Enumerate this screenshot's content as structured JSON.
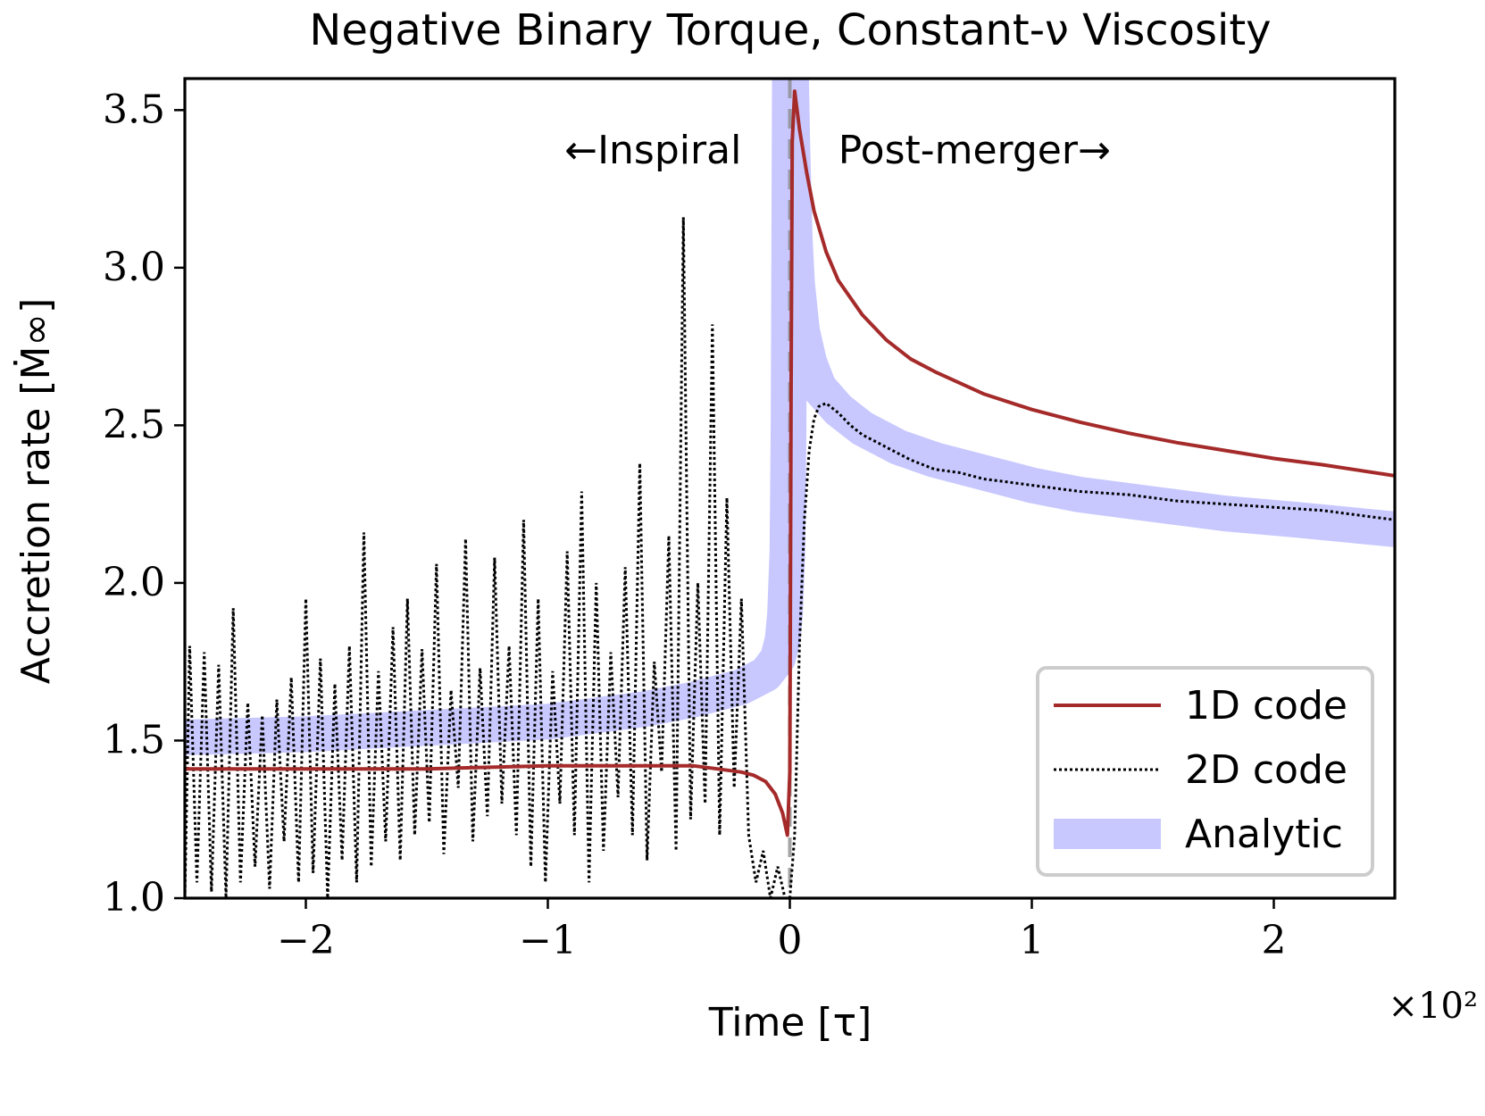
{
  "chart_data": {
    "type": "line",
    "title": "Negative Binary Torque, Constant-ν Viscosity",
    "xlabel": "Time [τ]",
    "ylabel": "Accretion rate [Ṁ∞]",
    "x_multiplier": "×10²",
    "xlim": [
      -2.5,
      2.5
    ],
    "ylim": [
      1.0,
      3.6
    ],
    "xticks": [
      {
        "value": -2,
        "label": "−2"
      },
      {
        "value": -1,
        "label": "−1"
      },
      {
        "value": 0,
        "label": "0"
      },
      {
        "value": 1,
        "label": "1"
      },
      {
        "value": 2,
        "label": "2"
      }
    ],
    "yticks": [
      {
        "value": 1.0,
        "label": "1.0"
      },
      {
        "value": 1.5,
        "label": "1.5"
      },
      {
        "value": 2.0,
        "label": "2.0"
      },
      {
        "value": 2.5,
        "label": "2.5"
      },
      {
        "value": 3.0,
        "label": "3.0"
      },
      {
        "value": 3.5,
        "label": "3.5"
      }
    ],
    "grid": false,
    "legend_position": "bottom-right",
    "annotations": [
      {
        "text": "←Inspiral",
        "x": -0.2,
        "y": 3.37,
        "anchor": "end"
      },
      {
        "text": "Post-merger→",
        "x": 0.2,
        "y": 3.37,
        "anchor": "start"
      }
    ],
    "vline": {
      "x": 0.0,
      "style": "dashed",
      "color": "#888888"
    },
    "series": [
      {
        "name": "1D code",
        "color": "#a52a2a",
        "style": "solid",
        "x": [
          -2.5,
          -2.0,
          -1.5,
          -1.0,
          -0.6,
          -0.4,
          -0.3,
          -0.2,
          -0.15,
          -0.1,
          -0.06,
          -0.03,
          -0.01,
          0.0,
          0.005,
          0.01,
          0.02,
          0.04,
          0.07,
          0.1,
          0.15,
          0.2,
          0.3,
          0.4,
          0.5,
          0.6,
          0.8,
          1.0,
          1.2,
          1.4,
          1.6,
          1.8,
          2.0,
          2.2,
          2.5
        ],
        "y": [
          1.41,
          1.41,
          1.41,
          1.42,
          1.42,
          1.42,
          1.41,
          1.4,
          1.39,
          1.37,
          1.33,
          1.27,
          1.2,
          1.4,
          2.6,
          3.4,
          3.56,
          3.44,
          3.3,
          3.18,
          3.05,
          2.96,
          2.85,
          2.77,
          2.71,
          2.67,
          2.6,
          2.55,
          2.51,
          2.475,
          2.445,
          2.42,
          2.395,
          2.375,
          2.34
        ]
      },
      {
        "name": "2D code",
        "color": "#000000",
        "style": "dotted",
        "x": [
          -2.5,
          -2.48,
          -2.45,
          -2.42,
          -2.39,
          -2.36,
          -2.33,
          -2.3,
          -2.27,
          -2.24,
          -2.21,
          -2.18,
          -2.15,
          -2.12,
          -2.09,
          -2.06,
          -2.03,
          -2.0,
          -1.97,
          -1.94,
          -1.91,
          -1.88,
          -1.85,
          -1.82,
          -1.79,
          -1.76,
          -1.73,
          -1.7,
          -1.67,
          -1.64,
          -1.61,
          -1.58,
          -1.55,
          -1.52,
          -1.49,
          -1.46,
          -1.43,
          -1.4,
          -1.37,
          -1.34,
          -1.31,
          -1.28,
          -1.25,
          -1.22,
          -1.19,
          -1.16,
          -1.13,
          -1.1,
          -1.07,
          -1.04,
          -1.01,
          -0.98,
          -0.95,
          -0.92,
          -0.89,
          -0.86,
          -0.83,
          -0.8,
          -0.77,
          -0.74,
          -0.71,
          -0.68,
          -0.65,
          -0.62,
          -0.59,
          -0.56,
          -0.53,
          -0.5,
          -0.47,
          -0.44,
          -0.41,
          -0.38,
          -0.35,
          -0.32,
          -0.29,
          -0.26,
          -0.23,
          -0.2,
          -0.17,
          -0.14,
          -0.11,
          -0.08,
          -0.05,
          -0.02,
          0.0,
          0.02,
          0.04,
          0.06,
          0.08,
          0.1,
          0.12,
          0.15,
          0.2,
          0.25,
          0.3,
          0.35,
          0.4,
          0.45,
          0.5,
          0.6,
          0.7,
          0.8,
          0.9,
          1.0,
          1.2,
          1.4,
          1.6,
          1.8,
          2.0,
          2.2,
          2.4,
          2.5
        ],
        "y": [
          1.0,
          1.8,
          1.05,
          1.78,
          1.02,
          1.74,
          1.0,
          1.92,
          1.05,
          1.62,
          1.1,
          1.58,
          1.03,
          1.63,
          1.18,
          1.7,
          1.05,
          1.95,
          1.08,
          1.76,
          1.0,
          1.68,
          1.12,
          1.8,
          1.05,
          2.16,
          1.1,
          1.72,
          1.18,
          1.86,
          1.12,
          1.95,
          1.2,
          1.79,
          1.24,
          2.06,
          1.14,
          1.66,
          1.35,
          2.14,
          1.18,
          1.73,
          1.26,
          2.08,
          1.3,
          1.8,
          1.2,
          2.2,
          1.1,
          1.95,
          1.05,
          1.72,
          1.3,
          2.1,
          1.2,
          2.29,
          1.05,
          2.0,
          1.15,
          1.78,
          1.32,
          2.05,
          1.2,
          2.38,
          1.12,
          1.75,
          1.4,
          2.15,
          1.15,
          3.16,
          1.25,
          2.0,
          1.3,
          2.82,
          1.2,
          2.27,
          1.35,
          1.95,
          1.2,
          1.05,
          1.15,
          1.0,
          1.1,
          1.0,
          1.0,
          1.2,
          1.8,
          2.2,
          2.42,
          2.52,
          2.56,
          2.57,
          2.54,
          2.5,
          2.47,
          2.45,
          2.43,
          2.41,
          2.39,
          2.36,
          2.35,
          2.33,
          2.32,
          2.31,
          2.29,
          2.28,
          2.26,
          2.25,
          2.24,
          2.23,
          2.21,
          2.2
        ]
      },
      {
        "name": "Analytic",
        "color": "#c8c8ff",
        "style": "band",
        "x": [
          -2.5,
          -2.0,
          -1.5,
          -1.0,
          -0.6,
          -0.4,
          -0.3,
          -0.2,
          -0.1,
          -0.05,
          -0.03,
          -0.02,
          -0.01,
          -0.005,
          0.0,
          0.005,
          0.01,
          0.02,
          0.03,
          0.05,
          0.08,
          0.12,
          0.2,
          0.3,
          0.45,
          0.6,
          0.8,
          1.0,
          1.2,
          1.5,
          1.8,
          2.1,
          2.5
        ],
        "y": [
          1.51,
          1.52,
          1.54,
          1.56,
          1.6,
          1.63,
          1.65,
          1.67,
          1.71,
          1.76,
          1.82,
          1.9,
          2.1,
          2.5,
          3.6,
          3.6,
          3.4,
          3.1,
          2.95,
          2.8,
          2.7,
          2.62,
          2.55,
          2.49,
          2.43,
          2.39,
          2.35,
          2.31,
          2.28,
          2.25,
          2.22,
          2.2,
          2.17
        ]
      }
    ]
  }
}
